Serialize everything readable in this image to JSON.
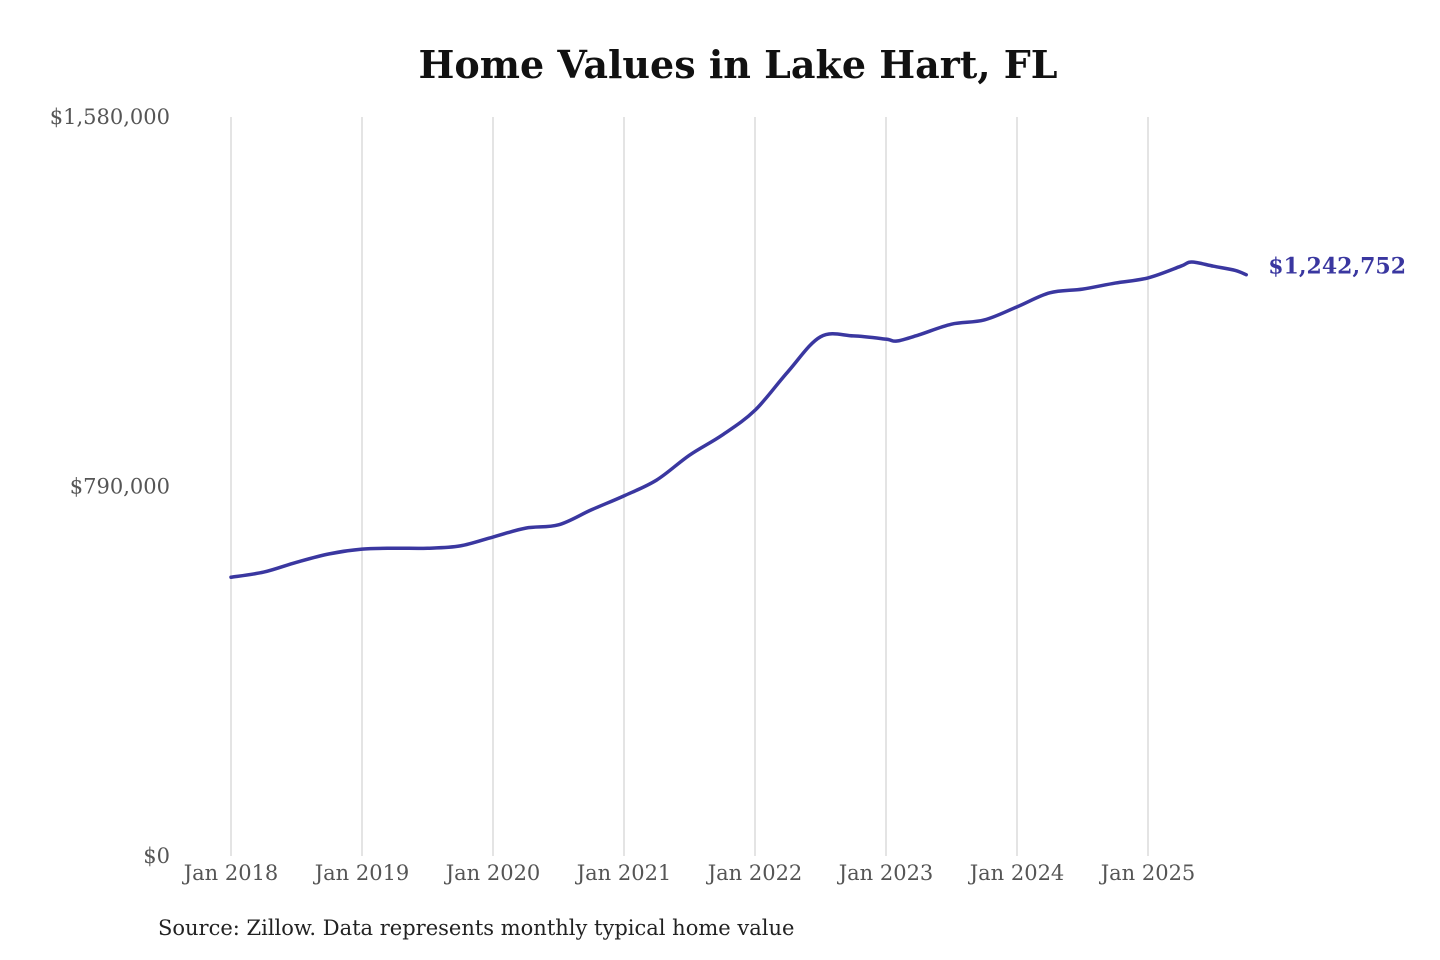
{
  "chart_data": {
    "type": "line",
    "title": "Home Values in Lake Hart, FL",
    "source": "Source: Zillow. Data represents monthly typical home value",
    "xlabel": "",
    "ylabel": "",
    "ylim": [
      0,
      1580000
    ],
    "y_ticks": [
      0,
      790000,
      1580000
    ],
    "y_tick_labels": [
      "$0",
      "$790,000",
      "$1,580,000"
    ],
    "x_ticks": [
      "2018-01",
      "2019-01",
      "2020-01",
      "2021-01",
      "2022-01",
      "2023-01",
      "2024-01",
      "2025-01"
    ],
    "x_tick_labels": [
      "Jan 2018",
      "Jan 2019",
      "Jan 2020",
      "Jan 2021",
      "Jan 2022",
      "Jan 2023",
      "Jan 2024",
      "Jan 2025"
    ],
    "grid": "vertical",
    "line_color": "#3a37a0",
    "end_label": "$1,242,752",
    "series": [
      {
        "x": [
          "2018-01",
          "2018-04",
          "2018-07",
          "2018-10",
          "2019-01",
          "2019-04",
          "2019-07",
          "2019-10",
          "2020-01",
          "2020-04",
          "2020-07",
          "2020-10",
          "2021-01",
          "2021-04",
          "2021-07",
          "2021-10",
          "2022-01",
          "2022-04",
          "2022-07",
          "2022-10",
          "2023-01",
          "2023-02",
          "2023-04",
          "2023-07",
          "2023-10",
          "2024-01",
          "2024-04",
          "2024-07",
          "2024-10",
          "2025-01",
          "2025-04",
          "2025-05",
          "2025-07",
          "2025-09",
          "2025-10"
        ],
        "values": [
          596000,
          607000,
          628000,
          646000,
          656000,
          658000,
          658000,
          663000,
          682000,
          701000,
          708000,
          740000,
          770000,
          804000,
          857000,
          900000,
          953000,
          1035000,
          1110000,
          1112000,
          1105000,
          1101000,
          1114000,
          1137000,
          1146000,
          1174000,
          1204000,
          1212000,
          1225000,
          1236000,
          1261000,
          1270000,
          1261000,
          1252000,
          1242752
        ]
      }
    ]
  }
}
